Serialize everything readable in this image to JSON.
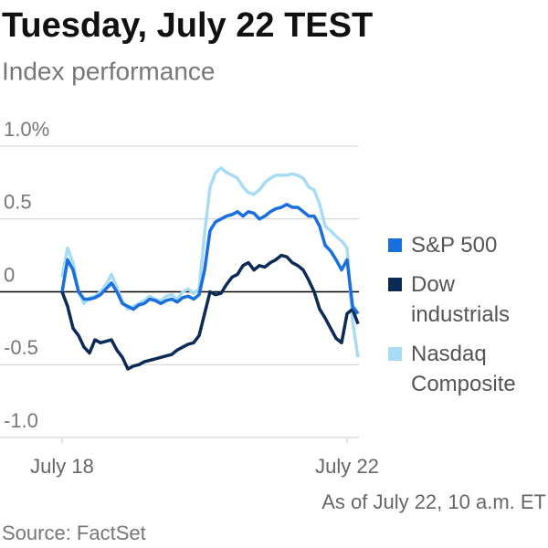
{
  "chart_data": {
    "type": "line",
    "title": "Tuesday, July 22 TEST",
    "subtitle": "Index performance",
    "note": "As of July 22, 10 a.m. ET",
    "source": "Source: FactSet",
    "categories": [
      "July 18",
      null,
      null,
      null,
      null,
      null,
      null,
      null,
      null,
      null,
      null,
      null,
      null,
      null,
      null,
      null,
      null,
      null,
      null,
      null,
      null,
      null,
      null,
      null,
      null,
      null,
      null,
      null,
      null,
      null,
      null,
      null,
      null,
      null,
      null,
      null,
      null,
      null,
      null,
      null,
      null,
      null,
      null,
      null,
      null,
      null,
      null,
      null,
      null,
      null,
      null,
      null,
      "July 22",
      null,
      null
    ],
    "series": [
      {
        "name": "S&P 500",
        "color": "#1a6fdf",
        "values": [
          0.0,
          0.22,
          0.15,
          0.0,
          -0.05,
          -0.05,
          -0.04,
          -0.02,
          0.02,
          0.06,
          0.0,
          -0.08,
          -0.1,
          -0.12,
          -0.09,
          -0.08,
          -0.05,
          -0.06,
          -0.08,
          -0.06,
          -0.05,
          -0.07,
          -0.04,
          -0.03,
          -0.05,
          -0.02,
          0.15,
          0.42,
          0.48,
          0.5,
          0.52,
          0.53,
          0.55,
          0.52,
          0.55,
          0.54,
          0.5,
          0.52,
          0.55,
          0.57,
          0.58,
          0.6,
          0.58,
          0.58,
          0.55,
          0.52,
          0.52,
          0.45,
          0.32,
          0.28,
          0.22,
          0.15,
          0.22,
          -0.1,
          -0.15
        ]
      },
      {
        "name": "Dow industrials",
        "color": "#0b2a55",
        "values": [
          0.0,
          -0.1,
          -0.25,
          -0.3,
          -0.38,
          -0.42,
          -0.33,
          -0.35,
          -0.34,
          -0.33,
          -0.4,
          -0.45,
          -0.53,
          -0.51,
          -0.5,
          -0.48,
          -0.47,
          -0.46,
          -0.45,
          -0.44,
          -0.43,
          -0.4,
          -0.38,
          -0.36,
          -0.35,
          -0.3,
          -0.15,
          0.0,
          -0.02,
          -0.01,
          0.05,
          0.1,
          0.12,
          0.18,
          0.2,
          0.15,
          0.18,
          0.17,
          0.2,
          0.22,
          0.25,
          0.24,
          0.2,
          0.18,
          0.15,
          0.08,
          0.0,
          -0.12,
          -0.18,
          -0.25,
          -0.32,
          -0.35,
          -0.15,
          -0.12,
          -0.22
        ]
      },
      {
        "name": "Nasdaq Composite",
        "color": "#a8dcf5",
        "values": [
          0.1,
          0.3,
          0.2,
          0.0,
          -0.08,
          -0.04,
          -0.03,
          0.0,
          0.05,
          0.12,
          0.03,
          -0.07,
          -0.12,
          -0.1,
          -0.08,
          -0.06,
          -0.03,
          -0.05,
          -0.06,
          -0.03,
          -0.02,
          -0.05,
          0.0,
          0.02,
          -0.01,
          0.02,
          0.4,
          0.72,
          0.82,
          0.85,
          0.82,
          0.8,
          0.78,
          0.72,
          0.68,
          0.67,
          0.7,
          0.75,
          0.78,
          0.8,
          0.8,
          0.8,
          0.81,
          0.8,
          0.78,
          0.72,
          0.7,
          0.6,
          0.45,
          0.42,
          0.38,
          0.35,
          0.3,
          -0.2,
          -0.45
        ]
      }
    ],
    "ylim": [
      -1.0,
      1.0
    ],
    "yticks": [
      {
        "value": 1.0,
        "label": "1.0%"
      },
      {
        "value": 0.5,
        "label": "0.5"
      },
      0,
      {
        "value": -0.5,
        "label": "-0.5"
      },
      {
        "value": -1.0,
        "label": "-1.0"
      }
    ],
    "grid": true
  }
}
